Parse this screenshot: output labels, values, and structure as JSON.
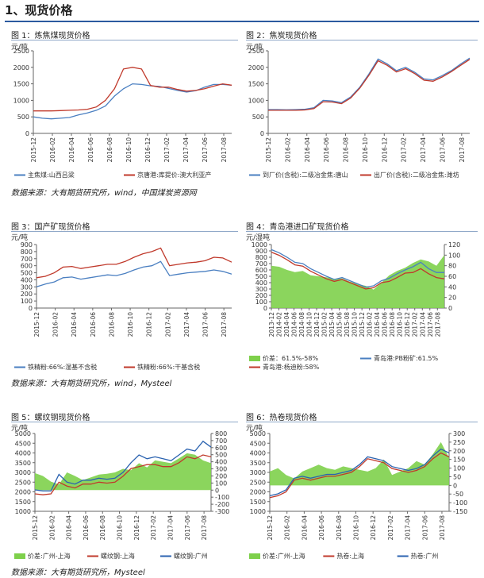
{
  "section_title": "1、现货价格",
  "sources": {
    "row1": "数据来源：大有期货研究所，wind，中国煤炭资源网",
    "row2": "数据来源：大有期货研究所，wind，Mysteel",
    "row3": "数据来源：大有期货研究所，Mysteel"
  },
  "chart_data": [
    {
      "type": "line",
      "title": "图 1：炼焦煤现货价格",
      "ylabel": "元/吨",
      "ylim": [
        0,
        2500
      ],
      "yticks": [
        "0",
        "500",
        "1000",
        "1500",
        "2000",
        "2500"
      ],
      "x_tick_labels": [
        "2015-12",
        "2016-02",
        "2016-04",
        "2016-06",
        "2016-08",
        "2016-10",
        "2016-12",
        "2017-02",
        "2017-04",
        "2017-06",
        "2017-08"
      ],
      "series": [
        {
          "name": "主焦煤:山西吕梁",
          "color": "#4a7fc1",
          "values": [
            500,
            460,
            440,
            460,
            480,
            560,
            620,
            700,
            830,
            1130,
            1350,
            1500,
            1480,
            1440,
            1420,
            1360,
            1300,
            1250,
            1290,
            1400,
            1480,
            1480,
            1460
          ]
        },
        {
          "name": "京唐港:库提价:澳大利亚产",
          "color": "#c0392b",
          "values": [
            680,
            680,
            680,
            690,
            700,
            710,
            730,
            800,
            1000,
            1350,
            1950,
            2000,
            1950,
            1450,
            1400,
            1400,
            1330,
            1280,
            1300,
            1350,
            1430,
            1500,
            1460
          ]
        }
      ]
    },
    {
      "type": "line",
      "title": "图 2：焦炭现货价格",
      "ylabel": "元/吨",
      "ylim": [
        0,
        2500
      ],
      "yticks": [
        "0",
        "500",
        "1000",
        "1500",
        "2000",
        "2500"
      ],
      "x_tick_labels": [
        "2015-12",
        "2016-02",
        "2016-04",
        "2016-06",
        "2016-08",
        "2016-10",
        "2016-12",
        "2017-02",
        "2017-04",
        "2017-06",
        "2017-08"
      ],
      "series": [
        {
          "name": "到厂价(含税):二级冶金焦:唐山",
          "color": "#4a7fc1",
          "values": [
            720,
            720,
            715,
            720,
            730,
            780,
            1000,
            980,
            930,
            1100,
            1400,
            1800,
            2250,
            2100,
            1900,
            2000,
            1850,
            1650,
            1620,
            1750,
            1900,
            2100,
            2280
          ]
        },
        {
          "name": "出厂价(含税):二级冶金焦:潍坊",
          "color": "#c0392b",
          "values": [
            700,
            700,
            700,
            700,
            710,
            750,
            960,
            950,
            900,
            1070,
            1370,
            1760,
            2200,
            2060,
            1860,
            1960,
            1810,
            1610,
            1580,
            1710,
            1870,
            2060,
            2240
          ]
        }
      ]
    },
    {
      "type": "line",
      "title": "图 3：国产矿现货价格",
      "ylabel": "元/吨",
      "ylim": [
        0,
        900
      ],
      "yticks": [
        "0",
        "100",
        "200",
        "300",
        "400",
        "500",
        "600",
        "700",
        "800",
        "900"
      ],
      "x_tick_labels": [
        "2015-12",
        "2016-02",
        "2016-04",
        "2016-06",
        "2016-08",
        "2016-10",
        "2016-12",
        "2017-02",
        "2017-04",
        "2017-06",
        "2017-08"
      ],
      "series": [
        {
          "name": "铁精粉:66%:湿基不含税",
          "color": "#4a7fc1",
          "values": [
            300,
            340,
            370,
            430,
            440,
            410,
            430,
            450,
            470,
            460,
            490,
            540,
            580,
            600,
            660,
            460,
            480,
            500,
            510,
            520,
            540,
            520,
            480
          ]
        },
        {
          "name": "铁精粉:66%:干基含税",
          "color": "#c0392b",
          "values": [
            430,
            450,
            500,
            580,
            590,
            560,
            580,
            600,
            620,
            620,
            660,
            720,
            770,
            800,
            850,
            600,
            620,
            640,
            650,
            670,
            720,
            710,
            650
          ]
        }
      ]
    },
    {
      "type": "line",
      "title": "图 4：青岛港进口矿现货价格",
      "ylabel": "元/湿吨",
      "ylim": [
        0,
        1000
      ],
      "y2lim": [
        0,
        120
      ],
      "yticks": [
        "0",
        "100",
        "200",
        "300",
        "400",
        "500",
        "600",
        "700",
        "800",
        "900",
        "1000"
      ],
      "y2ticks": [
        "0",
        "20",
        "40",
        "60",
        "80",
        "100",
        "120"
      ],
      "x_tick_labels": [
        "2013-12",
        "2014-02",
        "2014-04",
        "2014-06",
        "2014-08",
        "2014-10",
        "2014-12",
        "2015-02",
        "2015-04",
        "2015-06",
        "2015-08",
        "2015-10",
        "2015-12",
        "2016-02",
        "2016-04",
        "2016-06",
        "2016-08",
        "2016-10",
        "2016-12",
        "2017-02",
        "2017-04",
        "2017-06",
        "2017-08"
      ],
      "series": [
        {
          "name": "价差：61.5%-58%",
          "color": "#7ed04b",
          "kind": "area",
          "axis": "right",
          "values": [
            80,
            78,
            72,
            68,
            70,
            62,
            60,
            58,
            55,
            56,
            50,
            45,
            42,
            35,
            48,
            62,
            70,
            76,
            85,
            92,
            88,
            80,
            100
          ]
        },
        {
          "name": "青岛港:PB粉矿:61.5%",
          "color": "#4a7fc1",
          "kind": "line",
          "axis": "left",
          "values": [
            920,
            870,
            800,
            720,
            700,
            620,
            560,
            500,
            450,
            480,
            430,
            380,
            330,
            350,
            430,
            470,
            540,
            600,
            650,
            720,
            620,
            560,
            560
          ]
        },
        {
          "name": "青岛港:杨迪粉:58%",
          "color": "#c0392b",
          "kind": "line",
          "axis": "left",
          "values": [
            880,
            830,
            760,
            680,
            660,
            580,
            520,
            460,
            420,
            450,
            400,
            350,
            300,
            320,
            400,
            420,
            480,
            550,
            560,
            620,
            540,
            480,
            460
          ]
        }
      ]
    },
    {
      "type": "line",
      "title": "图 5：螺纹钢现货价格",
      "ylabel": "元/吨",
      "ylim": [
        1000,
        5000
      ],
      "y2lim": [
        -300,
        800
      ],
      "yticks": [
        "1000",
        "1500",
        "2000",
        "2500",
        "3000",
        "3500",
        "4000",
        "4500",
        "5000"
      ],
      "y2ticks": [
        "-300",
        "-200",
        "-100",
        "0",
        "100",
        "200",
        "300",
        "400",
        "500",
        "600",
        "700",
        "800"
      ],
      "x_tick_labels": [
        "2015-12",
        "2016-02",
        "2016-04",
        "2016-06",
        "2016-08",
        "2016-10",
        "2016-12",
        "2017-02",
        "2017-04",
        "2017-06",
        "2017-08"
      ],
      "series": [
        {
          "name": "价差:广州-上海",
          "color": "#7ed04b",
          "kind": "area",
          "axis": "right",
          "values": [
            240,
            200,
            120,
            80,
            250,
            200,
            140,
            180,
            220,
            230,
            250,
            300,
            280,
            380,
            320,
            420,
            400,
            380,
            450,
            520,
            500,
            420,
            380
          ]
        },
        {
          "name": "螺纹钢:上海",
          "color": "#c0392b",
          "kind": "line",
          "axis": "left",
          "values": [
            1900,
            1850,
            1900,
            2500,
            2300,
            2200,
            2400,
            2400,
            2500,
            2450,
            2500,
            2800,
            3200,
            3300,
            3400,
            3400,
            3300,
            3300,
            3500,
            3800,
            3700,
            3900,
            3800
          ]
        },
        {
          "name": "螺纹钢:广州",
          "color": "#2a62b0",
          "kind": "line",
          "axis": "left",
          "values": [
            2100,
            2050,
            2050,
            2900,
            2500,
            2400,
            2600,
            2600,
            2700,
            2650,
            2700,
            3000,
            3500,
            3900,
            3700,
            3800,
            3700,
            3600,
            3900,
            4200,
            4100,
            4600,
            4300
          ]
        }
      ]
    },
    {
      "type": "line",
      "title": "图 6：热卷现货价格",
      "ylabel": "元/吨",
      "ylim": [
        1000,
        5000
      ],
      "y2lim": [
        -150,
        300
      ],
      "yticks": [
        "1000",
        "1500",
        "2000",
        "2500",
        "3000",
        "3500",
        "4000",
        "4500",
        "5000"
      ],
      "y2ticks": [
        "-150",
        "-100",
        "-50",
        "0",
        "50",
        "100",
        "150",
        "200",
        "250",
        "300"
      ],
      "x_tick_labels": [
        "2015-12",
        "2016-02",
        "2016-04",
        "2016-06",
        "2016-08",
        "2016-10",
        "2016-12",
        "2017-02",
        "2017-04",
        "2017-06",
        "2017-08"
      ],
      "series": [
        {
          "name": "价差:广州-上海",
          "color": "#7ed04b",
          "kind": "area",
          "axis": "right",
          "values": [
            80,
            100,
            60,
            40,
            80,
            100,
            120,
            100,
            90,
            110,
            100,
            90,
            80,
            100,
            150,
            60,
            80,
            100,
            140,
            120,
            180,
            250,
            160
          ]
        },
        {
          "name": "热卷:上海",
          "color": "#c0392b",
          "kind": "line",
          "axis": "left",
          "values": [
            1700,
            1800,
            2000,
            2600,
            2700,
            2600,
            2700,
            2800,
            2800,
            2900,
            3000,
            3300,
            3700,
            3600,
            3500,
            3200,
            3100,
            3000,
            3100,
            3300,
            3700,
            4000,
            3800
          ]
        },
        {
          "name": "热卷:广州",
          "color": "#2a62b0",
          "kind": "line",
          "axis": "left",
          "values": [
            1800,
            1900,
            2100,
            2700,
            2800,
            2700,
            2800,
            2900,
            2900,
            3000,
            3100,
            3400,
            3800,
            3700,
            3600,
            3300,
            3200,
            3100,
            3200,
            3400,
            3850,
            4200,
            4000
          ]
        }
      ]
    }
  ]
}
